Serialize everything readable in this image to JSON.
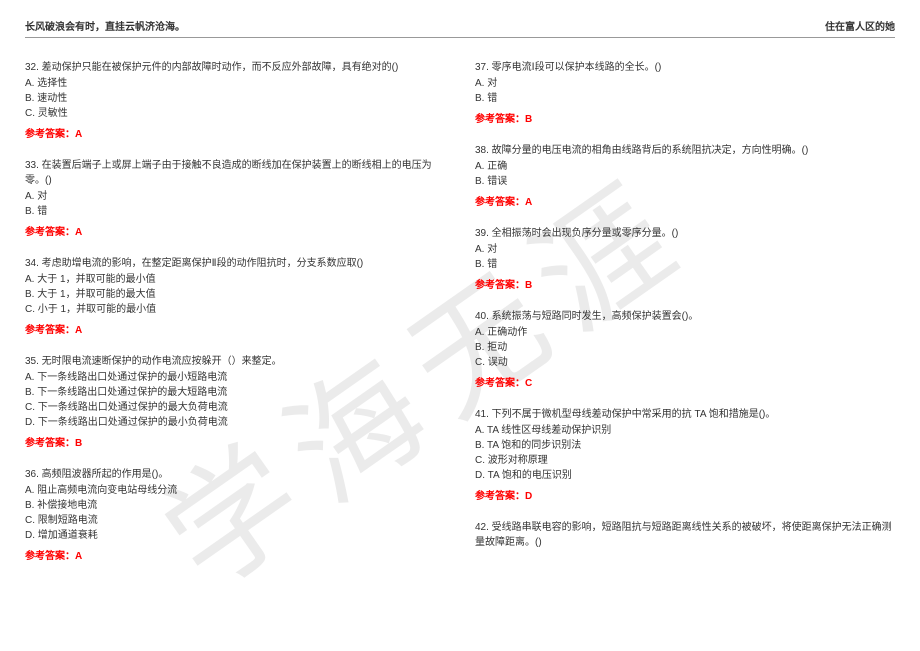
{
  "header": {
    "left": "长风破浪会有时，直挂云帆济沧海。",
    "right": "住在富人区的她"
  },
  "watermark": "学海无涯",
  "answer_label_prefix": "参考答案：",
  "left_col": [
    {
      "num": "32.",
      "text": "差动保护只能在被保护元件的内部故障时动作，而不反应外部故障，具有绝对的()",
      "opts": [
        "A. 选择性",
        "B. 速动性",
        "C. 灵敏性"
      ],
      "ans": "A"
    },
    {
      "num": "33.",
      "text": "在装置后端子上或屏上端子由于接触不良造成的断线加在保护装置上的断线相上的电压为零。()",
      "opts": [
        "A. 对",
        "B. 错"
      ],
      "ans": "A"
    },
    {
      "num": "34.",
      "text": "考虑助增电流的影响，在整定距离保护Ⅱ段的动作阻抗时，分支系数应取()",
      "opts": [
        "A. 大于 1，并取可能的最小值",
        "B. 大于 1，并取可能的最大值",
        "C. 小于 1，并取可能的最小值"
      ],
      "ans": "A"
    },
    {
      "num": "35.",
      "text": "无时限电流速断保护的动作电流应按躲开（）来整定。",
      "opts": [
        "A. 下一条线路出口处通过保护的最小短路电流",
        "B. 下一条线路出口处通过保护的最大短路电流",
        "C. 下一条线路出口处通过保护的最大负荷电流",
        "D. 下一条线路出口处通过保护的最小负荷电流"
      ],
      "ans": "B"
    },
    {
      "num": "36.",
      "text": "高频阻波器所起的作用是()。",
      "opts": [
        "A. 阻止高频电流向变电站母线分流",
        "B. 补偿接地电流",
        "C. 限制短路电流",
        "D. 增加通道衰耗"
      ],
      "ans": "A"
    }
  ],
  "right_col": [
    {
      "num": "37.",
      "text": "零序电流Ⅰ段可以保护本线路的全长。()",
      "opts": [
        "A. 对",
        "B. 错"
      ],
      "ans": "B"
    },
    {
      "num": "38.",
      "text": "故障分量的电压电流的相角由线路背后的系统阻抗决定，方向性明确。()",
      "opts": [
        "A. 正确",
        "B. 错误"
      ],
      "ans": "A"
    },
    {
      "num": "39.",
      "text": "全相振荡时会出现负序分量或零序分量。()",
      "opts": [
        "A. 对",
        "B. 错"
      ],
      "ans": "B"
    },
    {
      "num": "40.",
      "text": "系统振荡与短路同时发生，高频保护装置会()。",
      "opts": [
        "A. 正确动作",
        "B. 拒动",
        "C. 误动"
      ],
      "ans": "C"
    },
    {
      "num": "41.",
      "text": "下列不属于微机型母线差动保护中常采用的抗 TA 饱和措施是()。",
      "opts": [
        "A. TA 线性区母线差动保护识别",
        "B. TA 饱和的同步识别法",
        "C. 波形对称原理",
        "D. TA 饱和的电压识别"
      ],
      "ans": "D"
    },
    {
      "num": "42.",
      "text": "受线路串联电容的影响，短路阻抗与短路距离线性关系的被破坏，将使距离保护无法正确测量故障距离。()",
      "opts": [],
      "ans": null
    }
  ]
}
